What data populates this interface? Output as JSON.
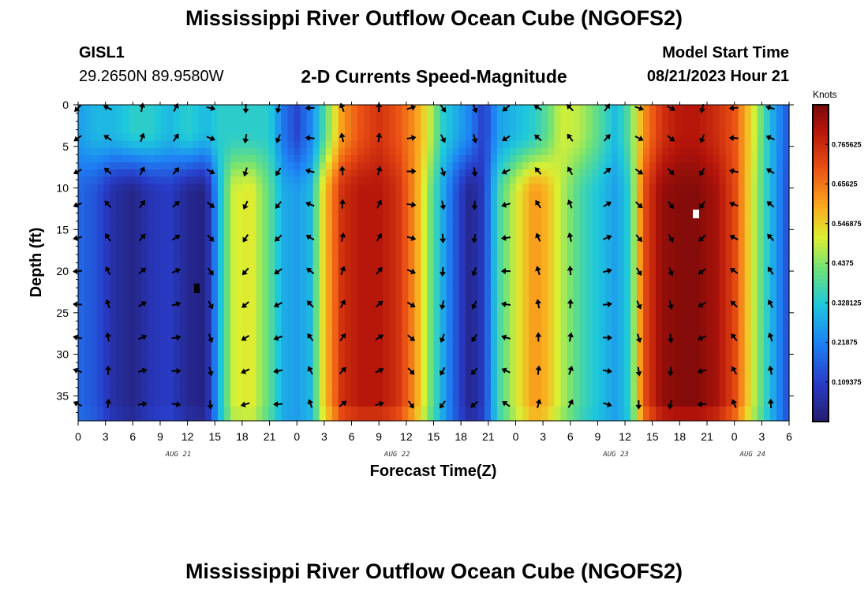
{
  "header": {
    "title": "Mississippi River Outflow Ocean Cube (NGOFS2)",
    "station_name": "GISL1",
    "coordinates": "29.2650N  89.9580W",
    "subtitle": "2-D Currents Speed-Magnitude",
    "model_label": "Model Start Time",
    "model_date": "08/21/2023 Hour 21"
  },
  "footer": {
    "title": "Mississippi River Outflow Ocean Cube (NGOFS2)"
  },
  "chart_data": {
    "type": "heatmap",
    "title": "2-D Currents Speed-Magnitude",
    "xlabel": "Forecast Time(Z)",
    "ylabel": "Depth (ft)",
    "xlim_hours": [
      0,
      78
    ],
    "ylim": [
      38,
      0
    ],
    "x_ticks": [
      "0",
      "3",
      "6",
      "9",
      "12",
      "15",
      "18",
      "21",
      "0",
      "3",
      "6",
      "9",
      "12",
      "15",
      "18",
      "21",
      "0",
      "3",
      "6",
      "9",
      "12",
      "15",
      "18",
      "21",
      "0",
      "3",
      "6"
    ],
    "y_ticks": [
      0,
      5,
      10,
      15,
      20,
      25,
      30,
      35
    ],
    "date_labels": [
      {
        "label": "AUG 21",
        "hour": 11
      },
      {
        "label": "AUG 22",
        "hour": 35
      },
      {
        "label": "AUG 23",
        "hour": 59
      },
      {
        "label": "AUG 24",
        "hour": 74
      }
    ],
    "colorbar": {
      "unit": "Knots",
      "min": 0,
      "max": 0.875,
      "ticks": [
        "0.765625",
        "0.65625",
        "0.546875",
        "0.4375",
        "0.328125",
        "0.21875",
        "0.109375"
      ],
      "tick_values": [
        0.765625,
        0.65625,
        0.546875,
        0.4375,
        0.328125,
        0.21875,
        0.109375
      ]
    },
    "speed_by_hour": {
      "hours": [
        0,
        2,
        4,
        6,
        8,
        10,
        12,
        14,
        15.5,
        17,
        19,
        21,
        22.5,
        24,
        25.5,
        27,
        29,
        31,
        33,
        35,
        37,
        38.5,
        40,
        41.5,
        43,
        44.5,
        46,
        48,
        50,
        51.5,
        53,
        55,
        57,
        59,
        60.5,
        62,
        64,
        66,
        68,
        70,
        72,
        74,
        76,
        78
      ],
      "surface": [
        0.26,
        0.3,
        0.3,
        0.34,
        0.34,
        0.3,
        0.34,
        0.3,
        0.34,
        0.34,
        0.34,
        0.34,
        0.2,
        0.12,
        0.22,
        0.38,
        0.62,
        0.7,
        0.75,
        0.7,
        0.62,
        0.5,
        0.34,
        0.28,
        0.22,
        0.1,
        0.26,
        0.3,
        0.34,
        0.4,
        0.5,
        0.48,
        0.4,
        0.3,
        0.4,
        0.62,
        0.75,
        0.8,
        0.8,
        0.76,
        0.7,
        0.52,
        0.3,
        0.14
      ],
      "deep": [
        0.18,
        0.14,
        0.06,
        0.03,
        0.08,
        0.1,
        0.04,
        0.02,
        0.3,
        0.5,
        0.52,
        0.4,
        0.28,
        0.26,
        0.3,
        0.56,
        0.76,
        0.8,
        0.8,
        0.76,
        0.62,
        0.44,
        0.28,
        0.14,
        0.03,
        0.1,
        0.36,
        0.5,
        0.62,
        0.58,
        0.48,
        0.38,
        0.32,
        0.26,
        0.34,
        0.7,
        0.84,
        0.86,
        0.86,
        0.82,
        0.72,
        0.5,
        0.3,
        0.12
      ]
    },
    "arrows": {
      "hours": [
        0,
        3.3,
        7,
        10.7,
        14.5,
        18.4,
        22,
        25.5,
        29,
        33,
        36.5,
        40,
        43.5,
        47,
        50.5,
        54,
        58,
        61.5,
        65,
        68.5,
        72,
        76
      ],
      "depths": [
        0,
        4,
        8,
        12,
        16,
        20,
        24,
        28,
        32,
        36
      ]
    }
  }
}
